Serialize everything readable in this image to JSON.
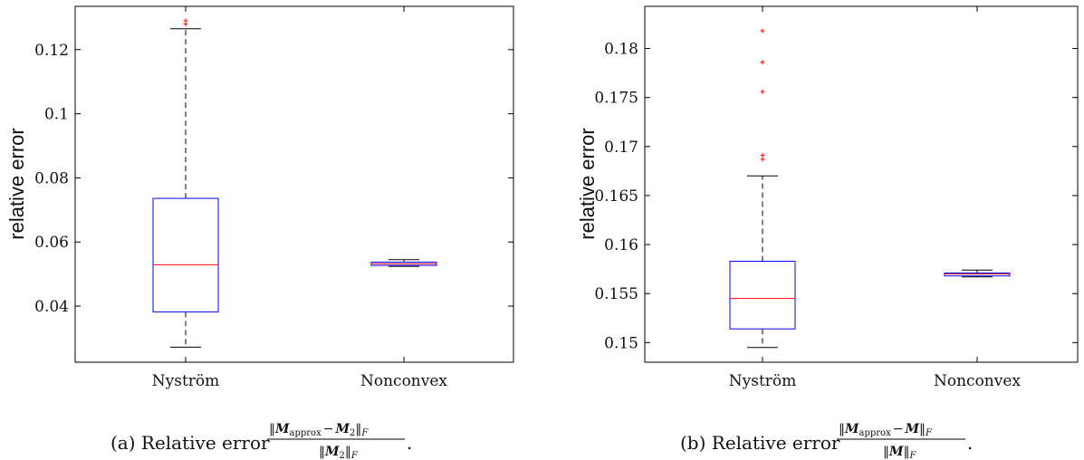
{
  "chart_data": [
    {
      "type": "box",
      "ylabel": "relative error",
      "categories": [
        "Nyström",
        "Nonconvex"
      ],
      "ylim": [
        0.0225,
        0.1335
      ],
      "yticks": [
        0.04,
        0.06,
        0.08,
        0.1,
        0.12
      ],
      "ytick_labels": [
        "0.04",
        "0.06",
        "0.08",
        "0.1",
        "0.12"
      ],
      "boxes": [
        {
          "category": "Nyström",
          "whisker_low": 0.0272,
          "q1": 0.0382,
          "median": 0.0529,
          "q3": 0.0736,
          "whisker_high": 0.1265,
          "outliers": [
            0.128,
            0.129
          ]
        },
        {
          "category": "Nonconvex",
          "whisker_low": 0.0524,
          "q1": 0.0527,
          "median": 0.0532,
          "q3": 0.0537,
          "whisker_high": 0.0545,
          "outliers": []
        }
      ],
      "caption": {
        "prefix": "(a) Relative error",
        "numerator": "‖M_approx − M_2‖_F",
        "denominator": "‖M_2‖_F",
        "suffix": "."
      }
    },
    {
      "type": "box",
      "ylabel": "relative error",
      "categories": [
        "Nyström",
        "Nonconvex"
      ],
      "ylim": [
        0.148,
        0.1843
      ],
      "yticks": [
        0.15,
        0.155,
        0.16,
        0.165,
        0.17,
        0.175,
        0.18
      ],
      "ytick_labels": [
        "0.15",
        "0.155",
        "0.16",
        "0.165",
        "0.17",
        "0.175",
        "0.18"
      ],
      "boxes": [
        {
          "category": "Nyström",
          "whisker_low": 0.1495,
          "q1": 0.1514,
          "median": 0.1545,
          "q3": 0.1583,
          "whisker_high": 0.167,
          "outliers": [
            0.1687,
            0.1691,
            0.1756,
            0.1786,
            0.1818
          ]
        },
        {
          "category": "Nonconvex",
          "whisker_low": 0.1567,
          "q1": 0.1568,
          "median": 0.157,
          "q3": 0.1571,
          "whisker_high": 0.1574,
          "outliers": []
        }
      ],
      "caption": {
        "prefix": "(b) Relative error",
        "numerator": "‖M_approx − M‖_F",
        "denominator": "‖M‖_F",
        "suffix": "."
      }
    }
  ],
  "captions": {
    "a": {
      "prefix": "(a) Relative error",
      "num_M": "M",
      "num_sub": "approx",
      "num_minus": "−",
      "num_M2": "M",
      "num_2": "2",
      "num_norm_sub": "F",
      "den_M": "M",
      "den_2": "2",
      "den_norm_sub": "F",
      "suffix": "."
    },
    "b": {
      "prefix": "(b) Relative error",
      "num_M": "M",
      "num_sub": "approx",
      "num_minus": "−",
      "num_M2": "M",
      "num_norm_sub": "F",
      "den_M": "M",
      "den_norm_sub": "F",
      "suffix": "."
    }
  },
  "colors": {
    "box": "#0000ff",
    "median": "#ff0000",
    "outlier": "#ff0000",
    "whisker": "#000000",
    "axis": "#000000"
  }
}
